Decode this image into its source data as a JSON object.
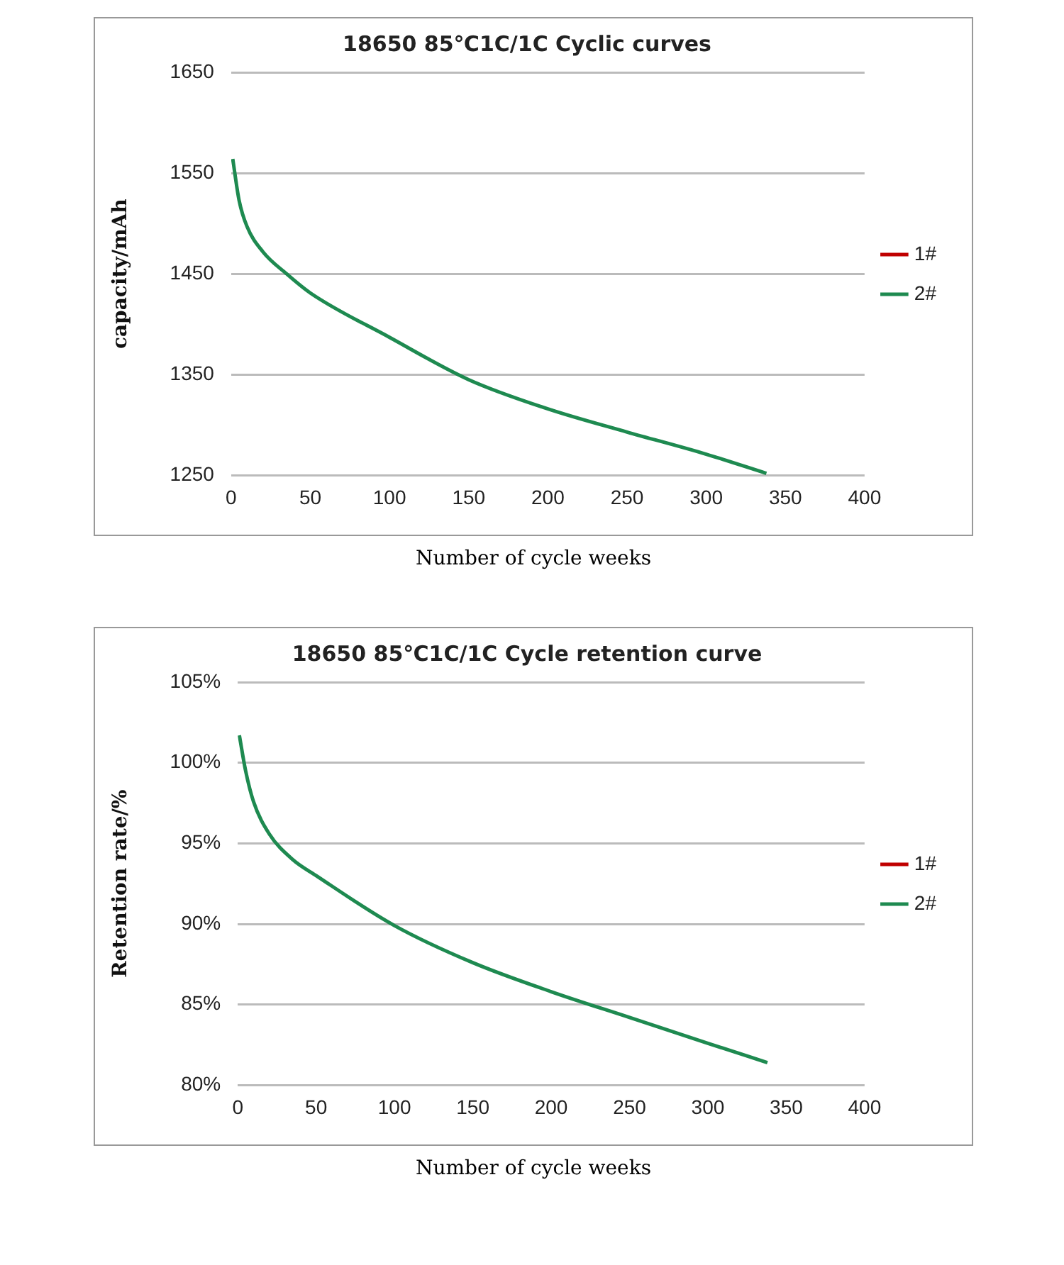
{
  "chart_data": [
    {
      "type": "line",
      "title": "18650 85℃1C/1C Cyclic curves",
      "xlabel": "Number of cycle weeks",
      "ylabel": "capacity/mAh",
      "x": [
        1,
        5,
        10,
        20,
        35,
        50,
        100,
        150,
        200,
        250,
        300,
        338
      ],
      "series": [
        {
          "name": "1#",
          "color": "#c00000",
          "values": [
            null,
            null,
            null,
            null,
            null,
            null,
            null,
            null,
            null,
            null,
            null,
            null
          ]
        },
        {
          "name": "2#",
          "color": "#1e8a50",
          "values": [
            1564,
            1523,
            1497,
            1472,
            1450,
            1431,
            1387,
            1345,
            1316,
            1293,
            1271,
            1252
          ]
        }
      ],
      "xlim": [
        0,
        400
      ],
      "xticks": [
        0,
        50,
        100,
        150,
        200,
        250,
        300,
        350,
        400
      ],
      "ylim": [
        1250,
        1650
      ],
      "yticks": [
        1250,
        1350,
        1450,
        1550,
        1650
      ],
      "grid": "y",
      "legend": "right",
      "marker": "none",
      "line_style": "solid"
    },
    {
      "type": "line",
      "title": "18650 85℃1C/1C Cycle retention curve",
      "xlabel": "Number of cycle weeks",
      "ylabel": "Retention rate/%",
      "x": [
        1,
        5,
        10,
        20,
        35,
        50,
        100,
        150,
        200,
        250,
        300,
        338
      ],
      "series": [
        {
          "name": "1#",
          "color": "#c00000",
          "values": [
            null,
            null,
            null,
            null,
            null,
            null,
            null,
            null,
            null,
            null,
            null,
            null
          ]
        },
        {
          "name": "2#",
          "color": "#1e8a50",
          "values": [
            101.7,
            99.5,
            97.6,
            95.6,
            94.0,
            93.0,
            89.9,
            87.6,
            85.8,
            84.2,
            82.6,
            81.4
          ]
        }
      ],
      "xlim": [
        0,
        400
      ],
      "xticks": [
        0,
        50,
        100,
        150,
        200,
        250,
        300,
        350,
        400
      ],
      "ylim": [
        80,
        105
      ],
      "yticks": [
        {
          "value": 80,
          "label": "80%"
        },
        {
          "value": 85,
          "label": "85%"
        },
        {
          "value": 90,
          "label": "90%"
        },
        {
          "value": 95,
          "label": "95%"
        },
        {
          "value": 100,
          "label": "100%"
        },
        {
          "value": 105,
          "label": "105%"
        }
      ],
      "grid": "y",
      "legend": "right",
      "marker": "none",
      "line_style": "solid"
    }
  ]
}
